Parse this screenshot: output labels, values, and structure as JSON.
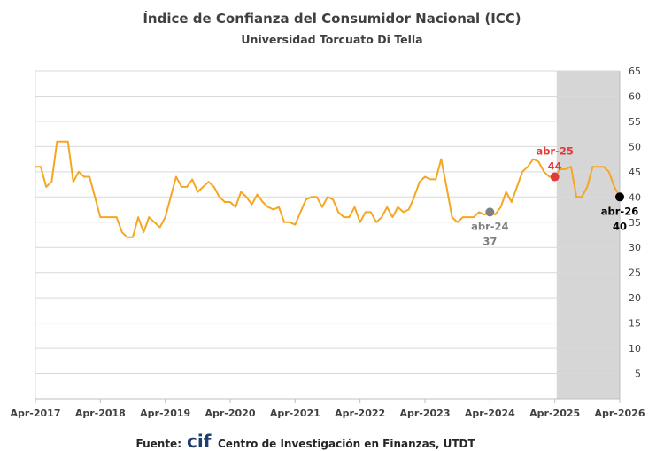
{
  "chart_data": {
    "type": "line",
    "title": "Índice de Confianza del Consumidor Nacional (ICC)",
    "subtitle": "Universidad Torcuato Di Tella",
    "x_tick_labels": [
      "Apr-2017",
      "Apr-2018",
      "Apr-2019",
      "Apr-2020",
      "Apr-2021",
      "Apr-2022",
      "Apr-2023",
      "Apr-2024",
      "Apr-2025",
      "Apr-2026"
    ],
    "xlim": [
      "2017-04",
      "2026-04"
    ],
    "ylim": [
      0,
      65
    ],
    "y_ticks": [
      5,
      10,
      15,
      20,
      25,
      30,
      35,
      40,
      45,
      50,
      55,
      60,
      65
    ],
    "y_axis_side": "right",
    "grid": true,
    "line_color": "#f5a623",
    "shaded_region": {
      "from": "2025-05",
      "to": "2026-04",
      "color": "#d6d6d6"
    },
    "series": [
      {
        "values": [
          {
            "x": "2017-04",
            "y": 46
          },
          {
            "x": "2017-05",
            "y": 46
          },
          {
            "x": "2017-06",
            "y": 42
          },
          {
            "x": "2017-07",
            "y": 43
          },
          {
            "x": "2017-08",
            "y": 51
          },
          {
            "x": "2017-09",
            "y": 51
          },
          {
            "x": "2017-10",
            "y": 51
          },
          {
            "x": "2017-11",
            "y": 43
          },
          {
            "x": "2017-12",
            "y": 45
          },
          {
            "x": "2018-01",
            "y": 44
          },
          {
            "x": "2018-02",
            "y": 44
          },
          {
            "x": "2018-03",
            "y": 40
          },
          {
            "x": "2018-04",
            "y": 36
          },
          {
            "x": "2018-05",
            "y": 36
          },
          {
            "x": "2018-06",
            "y": 36
          },
          {
            "x": "2018-07",
            "y": 36
          },
          {
            "x": "2018-08",
            "y": 33
          },
          {
            "x": "2018-09",
            "y": 32
          },
          {
            "x": "2018-10",
            "y": 32
          },
          {
            "x": "2018-11",
            "y": 36
          },
          {
            "x": "2018-12",
            "y": 33
          },
          {
            "x": "2019-01",
            "y": 36
          },
          {
            "x": "2019-02",
            "y": 35
          },
          {
            "x": "2019-03",
            "y": 34
          },
          {
            "x": "2019-04",
            "y": 36
          },
          {
            "x": "2019-05",
            "y": 40
          },
          {
            "x": "2019-06",
            "y": 44
          },
          {
            "x": "2019-07",
            "y": 42
          },
          {
            "x": "2019-08",
            "y": 42
          },
          {
            "x": "2019-09",
            "y": 43.5
          },
          {
            "x": "2019-10",
            "y": 41
          },
          {
            "x": "2019-11",
            "y": 42
          },
          {
            "x": "2019-12",
            "y": 43
          },
          {
            "x": "2020-01",
            "y": 42
          },
          {
            "x": "2020-02",
            "y": 40
          },
          {
            "x": "2020-03",
            "y": 39
          },
          {
            "x": "2020-04",
            "y": 39
          },
          {
            "x": "2020-05",
            "y": 38
          },
          {
            "x": "2020-06",
            "y": 41
          },
          {
            "x": "2020-07",
            "y": 40
          },
          {
            "x": "2020-08",
            "y": 38.5
          },
          {
            "x": "2020-09",
            "y": 40.5
          },
          {
            "x": "2020-10",
            "y": 39
          },
          {
            "x": "2020-11",
            "y": 38
          },
          {
            "x": "2020-12",
            "y": 37.5
          },
          {
            "x": "2021-01",
            "y": 38
          },
          {
            "x": "2021-02",
            "y": 35
          },
          {
            "x": "2021-03",
            "y": 35
          },
          {
            "x": "2021-04",
            "y": 34.5
          },
          {
            "x": "2021-05",
            "y": 37
          },
          {
            "x": "2021-06",
            "y": 39.5
          },
          {
            "x": "2021-07",
            "y": 40
          },
          {
            "x": "2021-08",
            "y": 40
          },
          {
            "x": "2021-09",
            "y": 38
          },
          {
            "x": "2021-10",
            "y": 40
          },
          {
            "x": "2021-11",
            "y": 39.5
          },
          {
            "x": "2021-12",
            "y": 37
          },
          {
            "x": "2022-01",
            "y": 36
          },
          {
            "x": "2022-02",
            "y": 36
          },
          {
            "x": "2022-03",
            "y": 38
          },
          {
            "x": "2022-04",
            "y": 35
          },
          {
            "x": "2022-05",
            "y": 37
          },
          {
            "x": "2022-06",
            "y": 37
          },
          {
            "x": "2022-07",
            "y": 35
          },
          {
            "x": "2022-08",
            "y": 36
          },
          {
            "x": "2022-09",
            "y": 38
          },
          {
            "x": "2022-10",
            "y": 36
          },
          {
            "x": "2022-11",
            "y": 38
          },
          {
            "x": "2022-12",
            "y": 37
          },
          {
            "x": "2023-01",
            "y": 37.5
          },
          {
            "x": "2023-02",
            "y": 40
          },
          {
            "x": "2023-03",
            "y": 43
          },
          {
            "x": "2023-04",
            "y": 44
          },
          {
            "x": "2023-05",
            "y": 43.5
          },
          {
            "x": "2023-06",
            "y": 43.5
          },
          {
            "x": "2023-07",
            "y": 47.5
          },
          {
            "x": "2023-08",
            "y": 42
          },
          {
            "x": "2023-09",
            "y": 36
          },
          {
            "x": "2023-10",
            "y": 35
          },
          {
            "x": "2023-11",
            "y": 36
          },
          {
            "x": "2023-12",
            "y": 36
          },
          {
            "x": "2024-01",
            "y": 36
          },
          {
            "x": "2024-02",
            "y": 37
          },
          {
            "x": "2024-03",
            "y": 36.5
          },
          {
            "x": "2024-04",
            "y": 37
          },
          {
            "x": "2024-05",
            "y": 36.5
          },
          {
            "x": "2024-06",
            "y": 38
          },
          {
            "x": "2024-07",
            "y": 41
          },
          {
            "x": "2024-08",
            "y": 39
          },
          {
            "x": "2024-09",
            "y": 42
          },
          {
            "x": "2024-10",
            "y": 45
          },
          {
            "x": "2024-11",
            "y": 46
          },
          {
            "x": "2024-12",
            "y": 47.5
          },
          {
            "x": "2025-01",
            "y": 47
          },
          {
            "x": "2025-02",
            "y": 45
          },
          {
            "x": "2025-03",
            "y": 44
          },
          {
            "x": "2025-04",
            "y": 44
          },
          {
            "x": "2025-05",
            "y": 45.5
          },
          {
            "x": "2025-06",
            "y": 45.5
          },
          {
            "x": "2025-07",
            "y": 46
          },
          {
            "x": "2025-08",
            "y": 40
          },
          {
            "x": "2025-09",
            "y": 40
          },
          {
            "x": "2025-10",
            "y": 42
          },
          {
            "x": "2025-11",
            "y": 46
          },
          {
            "x": "2025-12",
            "y": 46
          },
          {
            "x": "2026-01",
            "y": 46
          },
          {
            "x": "2026-02",
            "y": 45
          },
          {
            "x": "2026-03",
            "y": 42
          },
          {
            "x": "2026-04",
            "y": 40
          }
        ]
      }
    ],
    "annotations": [
      {
        "x": "2024-04",
        "y": 37,
        "date_label": "abr-24",
        "value_label": "37",
        "color": "#808080",
        "label_position": "below"
      },
      {
        "x": "2025-04",
        "y": 44,
        "date_label": "abr-25",
        "value_label": "44",
        "color": "#e03c3c",
        "label_position": "above"
      },
      {
        "x": "2026-04",
        "y": 40,
        "date_label": "abr-26",
        "value_label": "40",
        "color": "#000000",
        "label_position": "below"
      }
    ]
  },
  "footer": {
    "prefix": "Fuente:",
    "logo_text": "cif",
    "source": "Centro de Investigación en Finanzas, UTDT"
  }
}
